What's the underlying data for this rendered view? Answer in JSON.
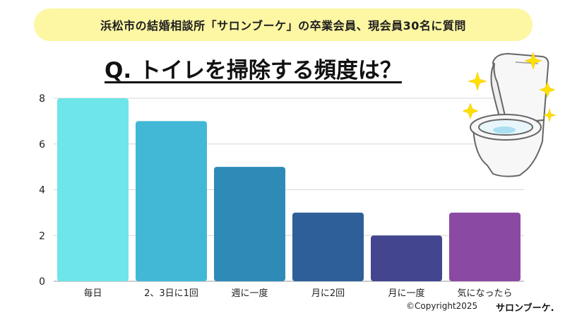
{
  "banner": {
    "text": "浜松市の結婚相談所「サロンブーケ」の卒業会員、現会員30名に質問"
  },
  "question": "Q. トイレを掃除する頻度は？",
  "footer": {
    "copyright": "©Copyright2025",
    "brand": "サロンブーケ."
  },
  "illustration": {
    "icon": "toilet-icon",
    "sparkle_icon": "sparkle-icon",
    "sparkle_color": "#ffe000"
  },
  "chart_data": {
    "type": "bar",
    "categories": [
      "毎日",
      "2、3日に1回",
      "週に一度",
      "月に2回",
      "月に一度",
      "気になったら"
    ],
    "values": [
      8,
      7,
      5,
      3,
      2,
      3
    ],
    "colors": [
      "#6de5e9",
      "#42b8d6",
      "#2e8bb8",
      "#2f5f99",
      "#43468f",
      "#8a4aa3"
    ],
    "ylim": [
      0,
      8
    ],
    "yticks": [
      "0",
      "2",
      "4",
      "6",
      "8"
    ],
    "grid": true
  }
}
